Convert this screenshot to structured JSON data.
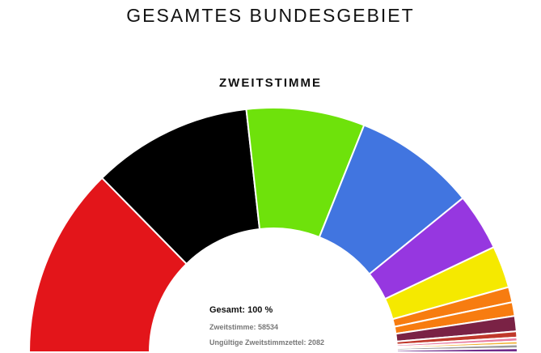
{
  "page": {
    "title": "GESAMTES BUNDESGEBIET"
  },
  "chart_data": {
    "type": "pie",
    "subtype": "semicircle-donut",
    "title": "ZWEITSTIMME",
    "unit": "%",
    "slices": [
      {
        "value": 25.0,
        "color": "#e3151a"
      },
      {
        "value": 21.0,
        "color": "#000000"
      },
      {
        "value": 15.5,
        "color": "#6ee20b"
      },
      {
        "value": 16.0,
        "color": "#4175e0"
      },
      {
        "value": 7.5,
        "color": "#9637e0"
      },
      {
        "value": 5.5,
        "color": "#f5e900"
      },
      {
        "value": 2.0,
        "color": "#f77c10"
      },
      {
        "value": 1.8,
        "color": "#f77c10"
      },
      {
        "value": 2.0,
        "color": "#7a2245"
      },
      {
        "value": 0.8,
        "color": "#c0392b"
      },
      {
        "value": 0.5,
        "color": "#e87ea1"
      },
      {
        "value": 0.4,
        "color": "#f2b233"
      },
      {
        "value": 0.5,
        "color": "#9b9b9b"
      },
      {
        "value": 0.5,
        "color": "#6f2b8a"
      }
    ],
    "summary": {
      "total": "Gesamt: 100 %",
      "zweitstimme": "Zweitstimme: 58534",
      "ungueltig": "Ungültige Zweitstimmzettel: 2082"
    }
  }
}
